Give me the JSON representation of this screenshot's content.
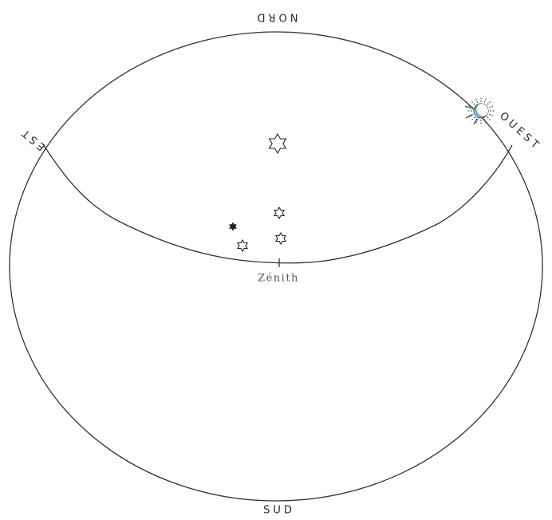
{
  "directions": {
    "north": "NORD",
    "south": "SUD",
    "east": "EST",
    "west": "OUEST"
  },
  "zenith_label": "Zénith",
  "colors": {
    "line": "#333333",
    "moon_fill": "#3fa9e0",
    "background": "#ffffff"
  },
  "icons": {
    "moon": "sun-rays-moon-icon",
    "star": "star-of-david-icon"
  }
}
